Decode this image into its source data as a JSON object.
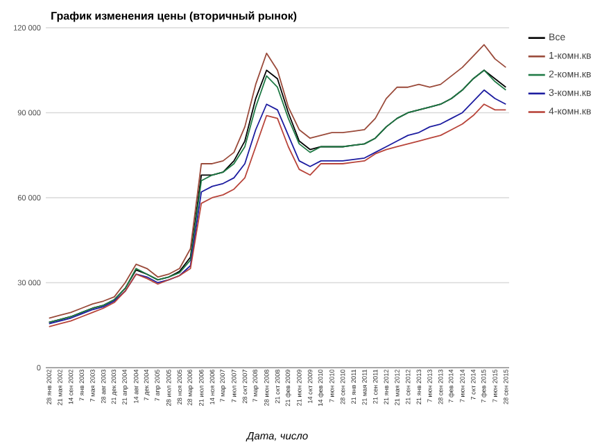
{
  "chart_data": {
    "type": "line",
    "title": "График изменения цены (вторичный рынок)",
    "xlabel": "Дата, число",
    "categories": [
      "28 янв 2002",
      "21 мая 2002",
      "14 сен 2002",
      "7 янв 2003",
      "7 мая 2003",
      "28 авг 2003",
      "21 дек 2003",
      "21 апр 2004",
      "14 авг 2004",
      "7 дек 2004",
      "7 апр 2005",
      "28 июл 2005",
      "28 ноя 2005",
      "28 мар 2006",
      "21 июл 2006",
      "14 ноя 2006",
      "7 мар 2007",
      "7 июл 2007",
      "28 окт 2007",
      "7 мар 2008",
      "28 июн 2008",
      "21 окт 2008",
      "21 фев 2009",
      "21 июн 2009",
      "14 окт 2009",
      "14 фев 2010",
      "7 июн 2010",
      "28 сен 2010",
      "21 янв 2011",
      "21 мая 2011",
      "21 сен 2011",
      "21 янв 2012",
      "21 мая 2012",
      "21 сен 2012",
      "21 янв 2013",
      "7 июн 2013",
      "28 сен 2013",
      "7 фев 2014",
      "7 июн 2014",
      "7 окт 2014",
      "7 фев 2015",
      "7 июн 2015",
      "28 сен 2015"
    ],
    "series": [
      {
        "name": "Все",
        "color": "#000000",
        "values": [
          16000,
          17000,
          18000,
          19500,
          21000,
          22000,
          24000,
          28000,
          34500,
          33000,
          31000,
          32000,
          34000,
          39000,
          68000,
          68000,
          69000,
          73000,
          80000,
          95000,
          105000,
          102000,
          90000,
          80000,
          77000,
          78000,
          78000,
          78000,
          78500,
          79000,
          81000,
          85000,
          88000,
          90000,
          91000,
          92000,
          93000,
          95000,
          98000,
          102000,
          105000,
          102000,
          99000
        ]
      },
      {
        "name": "1-комн.кв",
        "color": "#9a4a3a",
        "values": [
          17500,
          18500,
          19500,
          21000,
          22500,
          23500,
          25000,
          30000,
          36500,
          35000,
          32000,
          33000,
          35000,
          42000,
          72000,
          72000,
          73000,
          76000,
          85000,
          100000,
          111000,
          105000,
          92000,
          84000,
          81000,
          82000,
          83000,
          83000,
          83500,
          84000,
          88000,
          95000,
          99000,
          99000,
          100000,
          99000,
          100000,
          103000,
          106000,
          110000,
          114000,
          109000,
          106000
        ]
      },
      {
        "name": "2-комн.кв",
        "color": "#1f7a45",
        "values": [
          16000,
          17000,
          18000,
          19500,
          21000,
          22000,
          24000,
          28000,
          35000,
          33000,
          31000,
          32000,
          33500,
          38000,
          66000,
          68000,
          69000,
          72000,
          78000,
          92000,
          103000,
          99000,
          88000,
          79000,
          76000,
          78000,
          78000,
          78000,
          78500,
          79000,
          81000,
          85000,
          88000,
          90000,
          91000,
          92000,
          93000,
          95000,
          98000,
          102000,
          105000,
          101000,
          98000
        ]
      },
      {
        "name": "3-комн.кв",
        "color": "#1c1ca0",
        "values": [
          15500,
          16500,
          17500,
          19000,
          20500,
          21500,
          23500,
          27000,
          33000,
          32000,
          30000,
          31000,
          32500,
          36000,
          62000,
          64000,
          65000,
          67000,
          72000,
          84000,
          93000,
          91000,
          82000,
          73000,
          71000,
          73000,
          73000,
          73000,
          73500,
          74000,
          76000,
          78000,
          80000,
          82000,
          83000,
          85000,
          86000,
          88000,
          90000,
          94000,
          98000,
          95000,
          93000
        ]
      },
      {
        "name": "4-комн.кв",
        "color": "#b8443a",
        "values": [
          14500,
          15500,
          16500,
          18000,
          19500,
          21000,
          23000,
          27000,
          33000,
          31500,
          29500,
          31000,
          32500,
          35000,
          58000,
          60000,
          61000,
          63000,
          67000,
          78000,
          89000,
          88000,
          78000,
          70000,
          68000,
          72000,
          72000,
          72000,
          72500,
          73000,
          75500,
          77000,
          78000,
          79000,
          80000,
          81000,
          82000,
          84000,
          86000,
          89000,
          93000,
          91000,
          91000
        ]
      }
    ],
    "ylim": [
      0,
      120000
    ],
    "yticks": [
      {
        "value": 0,
        "label": "0"
      },
      {
        "value": 30000,
        "label": "30 000"
      },
      {
        "value": 60000,
        "label": "60 000"
      },
      {
        "value": 90000,
        "label": "90 000"
      },
      {
        "value": 120000,
        "label": "120 000"
      }
    ],
    "grid": "y",
    "legend": "right",
    "marker": "none",
    "line_style": "solid"
  }
}
